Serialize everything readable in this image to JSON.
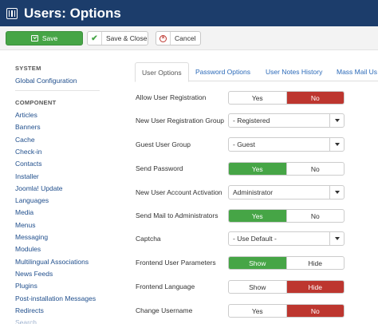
{
  "header": {
    "title": "Users: Options",
    "icon": "options-icon"
  },
  "toolbar": {
    "save_label": "Save",
    "save_close_label": "Save & Close",
    "cancel_label": "Cancel"
  },
  "sidebar": {
    "system_heading": "SYSTEM",
    "global_configuration": "Global Configuration",
    "component_heading": "COMPONENT",
    "components": [
      "Articles",
      "Banners",
      "Cache",
      "Check-in",
      "Contacts",
      "Installer",
      "Joomla! Update",
      "Languages",
      "Media",
      "Menus",
      "Messaging",
      "Modules",
      "Multilingual Associations",
      "News Feeds",
      "Plugins",
      "Post-installation Messages",
      "Redirects",
      "Search"
    ]
  },
  "tabs": [
    "User Options",
    "Password Options",
    "User Notes History",
    "Mass Mail Us"
  ],
  "options": [
    {
      "label": "Allow User Registration",
      "type": "toggle",
      "options": [
        "Yes",
        "No"
      ],
      "selected": "No",
      "selected_color": "red"
    },
    {
      "label": "New User Registration Group",
      "type": "select",
      "value": "- Registered"
    },
    {
      "label": "Guest User Group",
      "type": "select",
      "value": "- Guest"
    },
    {
      "label": "Send Password",
      "type": "toggle",
      "options": [
        "Yes",
        "No"
      ],
      "selected": "Yes",
      "selected_color": "green"
    },
    {
      "label": "New User Account Activation",
      "type": "select",
      "value": "Administrator"
    },
    {
      "label": "Send Mail to Administrators",
      "type": "toggle",
      "options": [
        "Yes",
        "No"
      ],
      "selected": "Yes",
      "selected_color": "green"
    },
    {
      "label": "Captcha",
      "type": "select",
      "value": "- Use Default -"
    },
    {
      "label": "Frontend User Parameters",
      "type": "toggle",
      "options": [
        "Show",
        "Hide"
      ],
      "selected": "Show",
      "selected_color": "green"
    },
    {
      "label": "Frontend Language",
      "type": "toggle",
      "options": [
        "Show",
        "Hide"
      ],
      "selected": "Hide",
      "selected_color": "red"
    },
    {
      "label": "Change Username",
      "type": "toggle",
      "options": [
        "Yes",
        "No"
      ],
      "selected": "No",
      "selected_color": "red"
    }
  ],
  "colors": {
    "header_bg": "#1c3d6b",
    "green": "#46a546",
    "red": "#bd362f",
    "link": "#1f4e8c"
  }
}
